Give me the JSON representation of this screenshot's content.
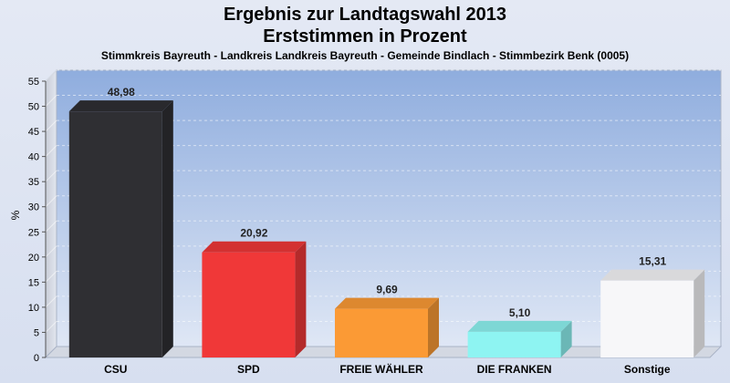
{
  "chart_data": {
    "type": "bar",
    "title_line1": "Ergebnis zur Landtagswahl 2013",
    "title_line2": "Erststimmen in Prozent",
    "subtitle": "Stimmkreis Bayreuth - Landkreis Landkreis Bayreuth - Gemeinde Bindlach - Stimmbezirk Benk (0005)",
    "ylabel": "%",
    "ylim": [
      0,
      55
    ],
    "yticks": [
      0,
      5,
      10,
      15,
      20,
      25,
      30,
      35,
      40,
      45,
      50,
      55
    ],
    "grid": true,
    "categories": [
      "CSU",
      "SPD",
      "FREIE WÄHLER",
      "DIE FRANKEN",
      "Sonstige"
    ],
    "values": [
      48.98,
      20.92,
      9.69,
      5.1,
      15.31
    ],
    "value_labels": [
      "48,98",
      "20,92",
      "9,69",
      "5,10",
      "15,31"
    ],
    "colors": [
      "#2f2f33",
      "#f03838",
      "#fb9a35",
      "#8ef4f2",
      "#f7f7f9"
    ]
  }
}
